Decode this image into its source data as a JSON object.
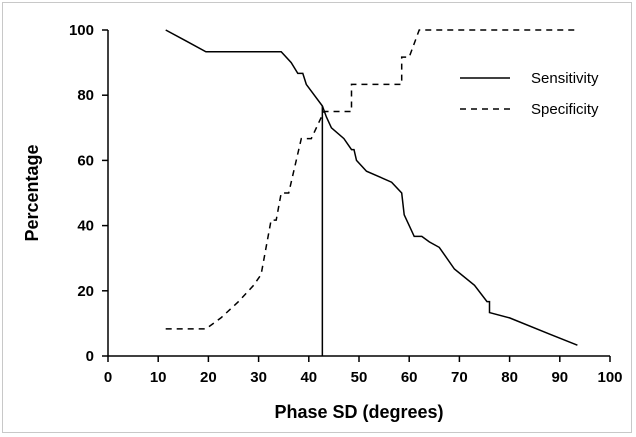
{
  "chart_data": {
    "type": "line",
    "xlabel": "Phase SD (degrees)",
    "ylabel": "Percentage",
    "xlim": [
      0,
      100
    ],
    "ylim": [
      0,
      100
    ],
    "xticks": [
      0,
      10,
      20,
      30,
      40,
      50,
      60,
      70,
      80,
      90,
      100
    ],
    "yticks": [
      0,
      20,
      40,
      60,
      80,
      100
    ],
    "legend_position": "top-right",
    "reference_line_x": 42.7,
    "series": [
      {
        "name": "Sensitivity",
        "style": "solid",
        "color": "#000000",
        "points": [
          [
            11.5,
            100
          ],
          [
            15.5,
            96.7
          ],
          [
            19.5,
            93.3
          ],
          [
            24,
            93.3
          ],
          [
            34.5,
            93.3
          ],
          [
            36.5,
            90
          ],
          [
            37.8,
            86.7
          ],
          [
            38.8,
            86.7
          ],
          [
            39.5,
            83.3
          ],
          [
            42.7,
            76.7
          ],
          [
            43.5,
            73.3
          ],
          [
            44.5,
            70
          ],
          [
            47,
            66.7
          ],
          [
            48.5,
            63.3
          ],
          [
            49,
            63.3
          ],
          [
            49.5,
            60
          ],
          [
            51.5,
            56.7
          ],
          [
            54,
            55
          ],
          [
            56.5,
            53.3
          ],
          [
            58.5,
            50
          ],
          [
            59,
            43.3
          ],
          [
            60,
            40
          ],
          [
            61,
            36.7
          ],
          [
            62.5,
            36.7
          ],
          [
            64,
            35
          ],
          [
            66,
            33.3
          ],
          [
            69,
            26.7
          ],
          [
            73,
            21.7
          ],
          [
            75.5,
            16.7
          ],
          [
            76,
            16.7
          ],
          [
            76,
            13.3
          ],
          [
            80,
            11.7
          ],
          [
            88,
            6.7
          ],
          [
            93.5,
            3.3
          ]
        ]
      },
      {
        "name": "Specificity",
        "style": "dashed",
        "color": "#000000",
        "points": [
          [
            11.5,
            8.3
          ],
          [
            19.5,
            8.3
          ],
          [
            22.5,
            11.7
          ],
          [
            26,
            16.7
          ],
          [
            29,
            21.7
          ],
          [
            30.5,
            25
          ],
          [
            32.5,
            41.7
          ],
          [
            33.5,
            41.7
          ],
          [
            34.5,
            50
          ],
          [
            36,
            50
          ],
          [
            38.5,
            66.7
          ],
          [
            40.5,
            66.7
          ],
          [
            42.5,
            73.3
          ],
          [
            43,
            75
          ],
          [
            48.5,
            75
          ],
          [
            48.5,
            83.3
          ],
          [
            58.5,
            83.3
          ],
          [
            58.5,
            91.7
          ],
          [
            60,
            91.7
          ],
          [
            62,
            100
          ],
          [
            63,
            100
          ],
          [
            93.5,
            100
          ]
        ]
      }
    ]
  }
}
